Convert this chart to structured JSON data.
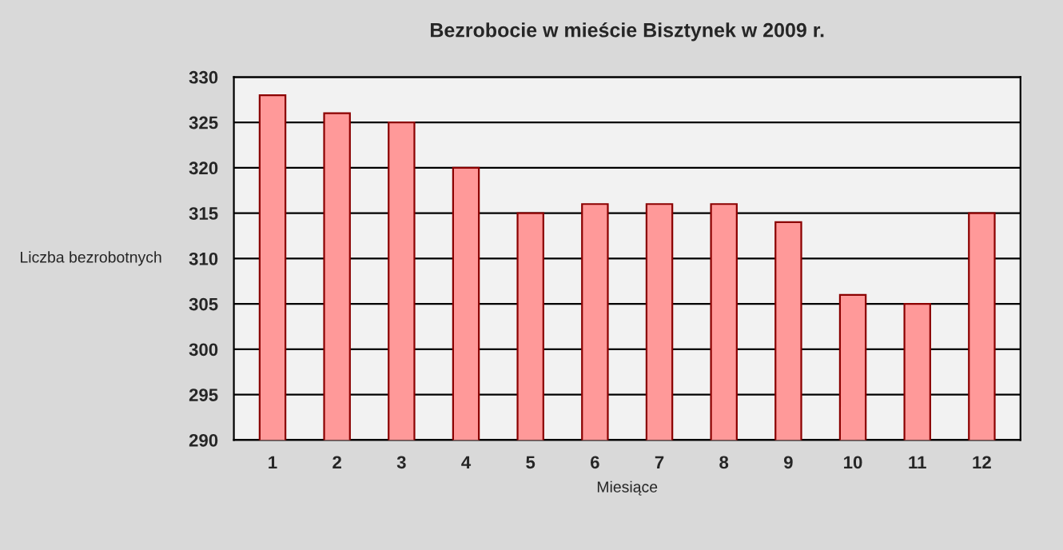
{
  "chart_data": {
    "type": "bar",
    "title": "Bezrobocie w mieście Bisztynek w 2009 r.",
    "xlabel": "Miesiące",
    "ylabel": "Liczba bezrobotnych",
    "categories": [
      "1",
      "2",
      "3",
      "4",
      "5",
      "6",
      "7",
      "8",
      "9",
      "10",
      "11",
      "12"
    ],
    "values": [
      328,
      326,
      325,
      320,
      315,
      316,
      316,
      316,
      314,
      306,
      305,
      315
    ],
    "color": "#ff9999",
    "ylim": [
      290,
      330
    ],
    "yticks": [
      290,
      295,
      300,
      305,
      310,
      315,
      320,
      325,
      330
    ],
    "grid": "y"
  }
}
